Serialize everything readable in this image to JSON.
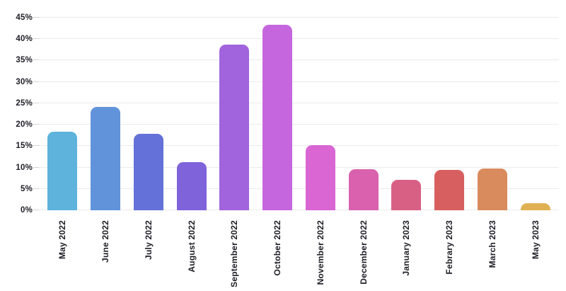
{
  "chart_data": {
    "type": "bar",
    "title": "",
    "xlabel": "",
    "ylabel": "",
    "ylim": [
      0,
      45
    ],
    "grid": true,
    "legend": false,
    "y_tick_values": [
      0,
      5,
      10,
      15,
      20,
      25,
      30,
      35,
      40,
      45
    ],
    "y_tick_labels": [
      "0%",
      "5%",
      "10%",
      "15%",
      "20%",
      "25%",
      "30%",
      "35%",
      "40%",
      "45%"
    ],
    "categories": [
      "May 2022",
      "June 2022",
      "July 2022",
      "August 2022",
      "September 2022",
      "October 2022",
      "November 2022",
      "December 2022",
      "January 2023",
      "Febrary 2023",
      "March 2023",
      "May 2023"
    ],
    "values": [
      18.3,
      24.2,
      17.9,
      11.2,
      38.7,
      43.4,
      15.3,
      9.6,
      7.1,
      9.5,
      9.7,
      1.6
    ],
    "bar_colors": [
      "#5db3dc",
      "#6093da",
      "#6471d8",
      "#7f63da",
      "#a164dc",
      "#c566de",
      "#d966d3",
      "#d961ae",
      "#d96085",
      "#d85f5f",
      "#d98b5e",
      "#dfb152"
    ]
  },
  "style": {
    "background": "#ffffff",
    "grid_color": "#ebebeb",
    "tick_color": "#d4d4d4",
    "label_color": "#1d1d26"
  }
}
